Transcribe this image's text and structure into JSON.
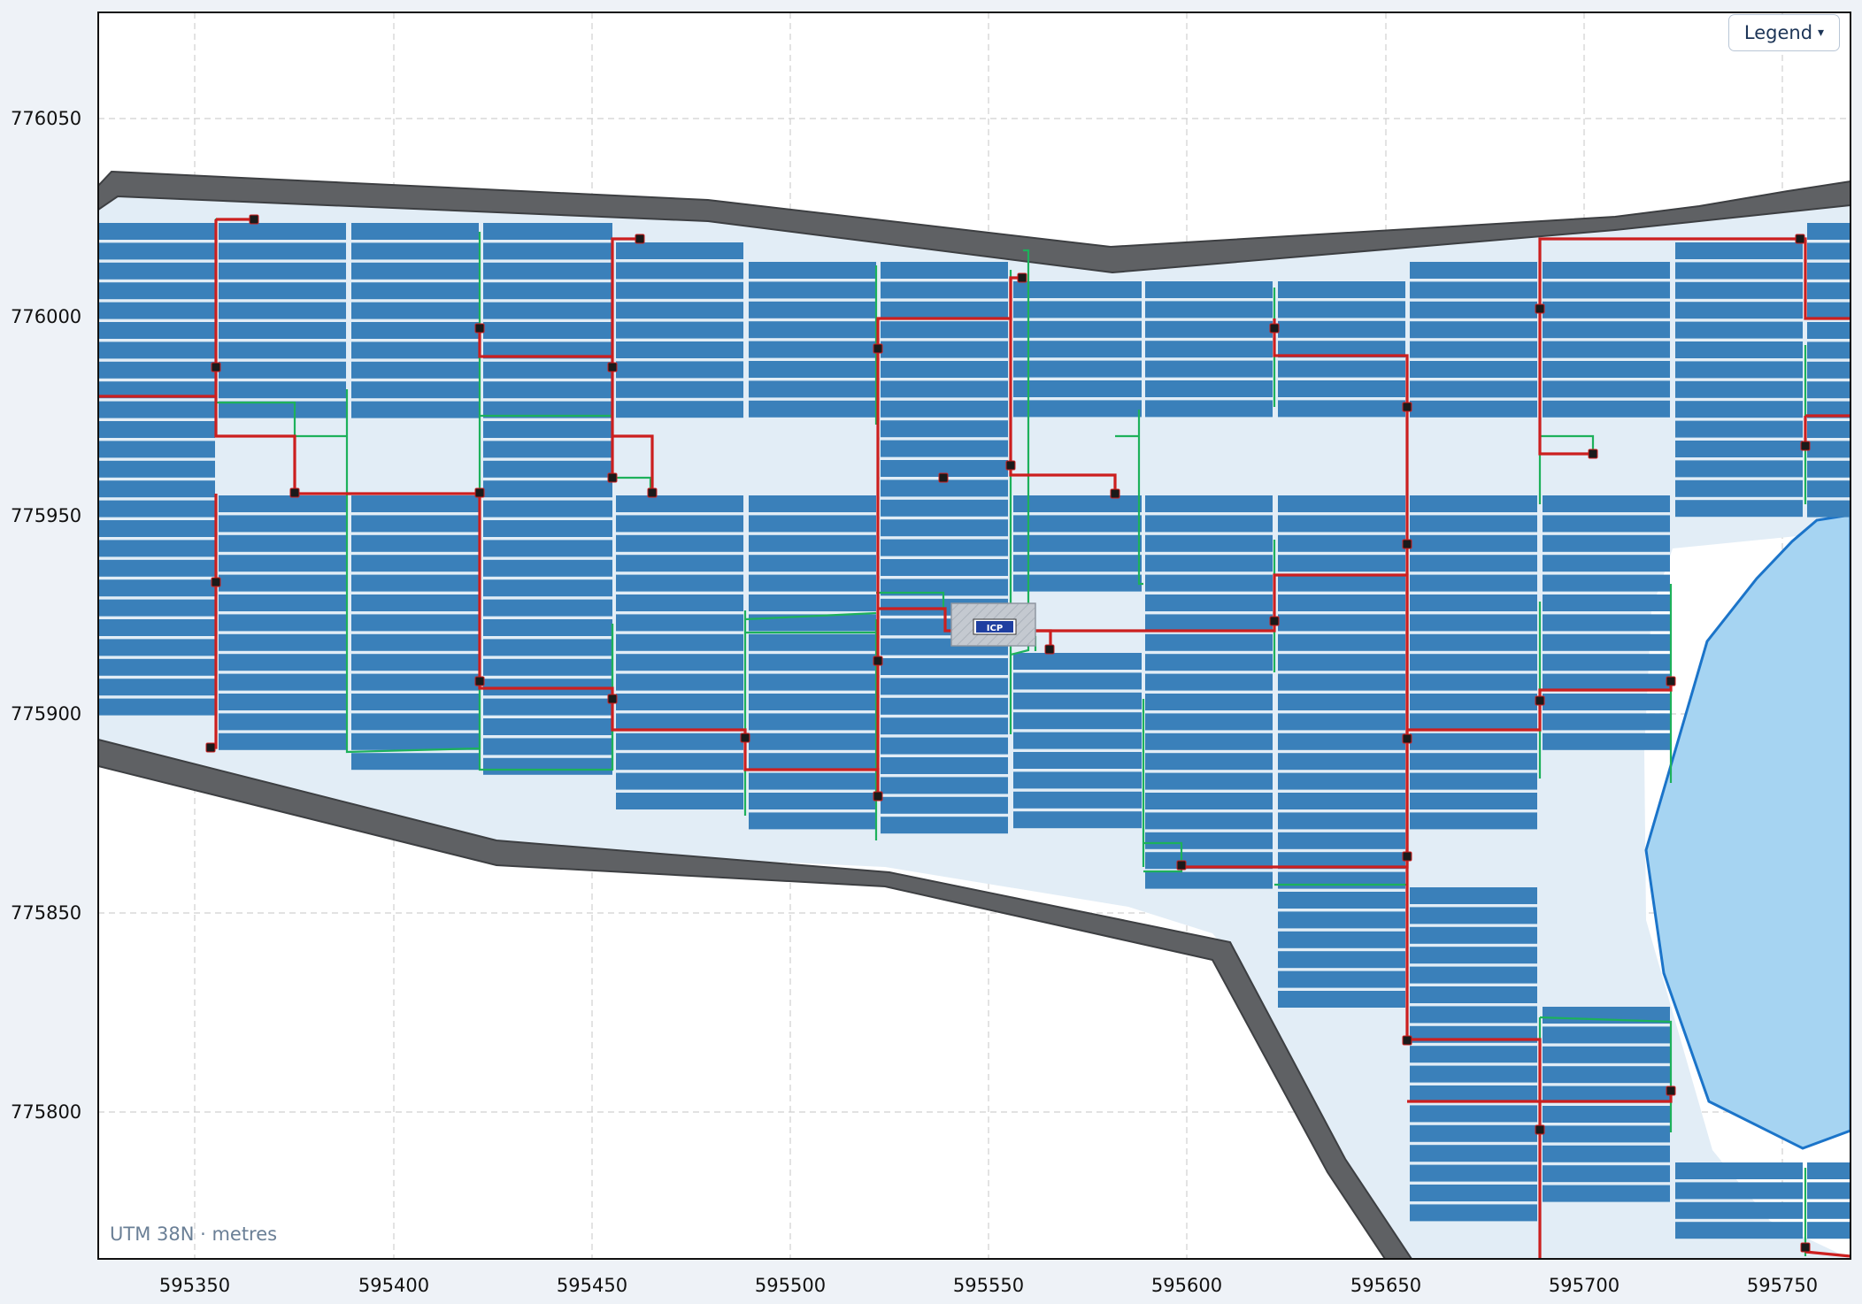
{
  "map": {
    "crs_label": "UTM 38N · metres",
    "x_ticks": [
      "595350",
      "595400",
      "595450",
      "595500",
      "595550",
      "595600",
      "595650",
      "595700",
      "595750"
    ],
    "y_ticks": [
      "776050",
      "776000",
      "775950",
      "775900",
      "775850",
      "775800"
    ],
    "grid": true,
    "colors": {
      "site_fill": "#e2edf6",
      "road": "#5f6164",
      "road_edge": "#3d3f42",
      "panel": "#3a80ba",
      "mv_cable": "#cc1f1f",
      "lv_cable": "#1db15b",
      "water_fill": "#a6d4f2",
      "water_edge": "#1b74c9",
      "substation": "#c4c9d0",
      "grid_line": "#d0d0d0"
    }
  },
  "legend_button": {
    "label": "Legend",
    "caret": "▾",
    "caret_icon": "chevron-down-icon"
  },
  "substation": {
    "label": "ICP"
  }
}
